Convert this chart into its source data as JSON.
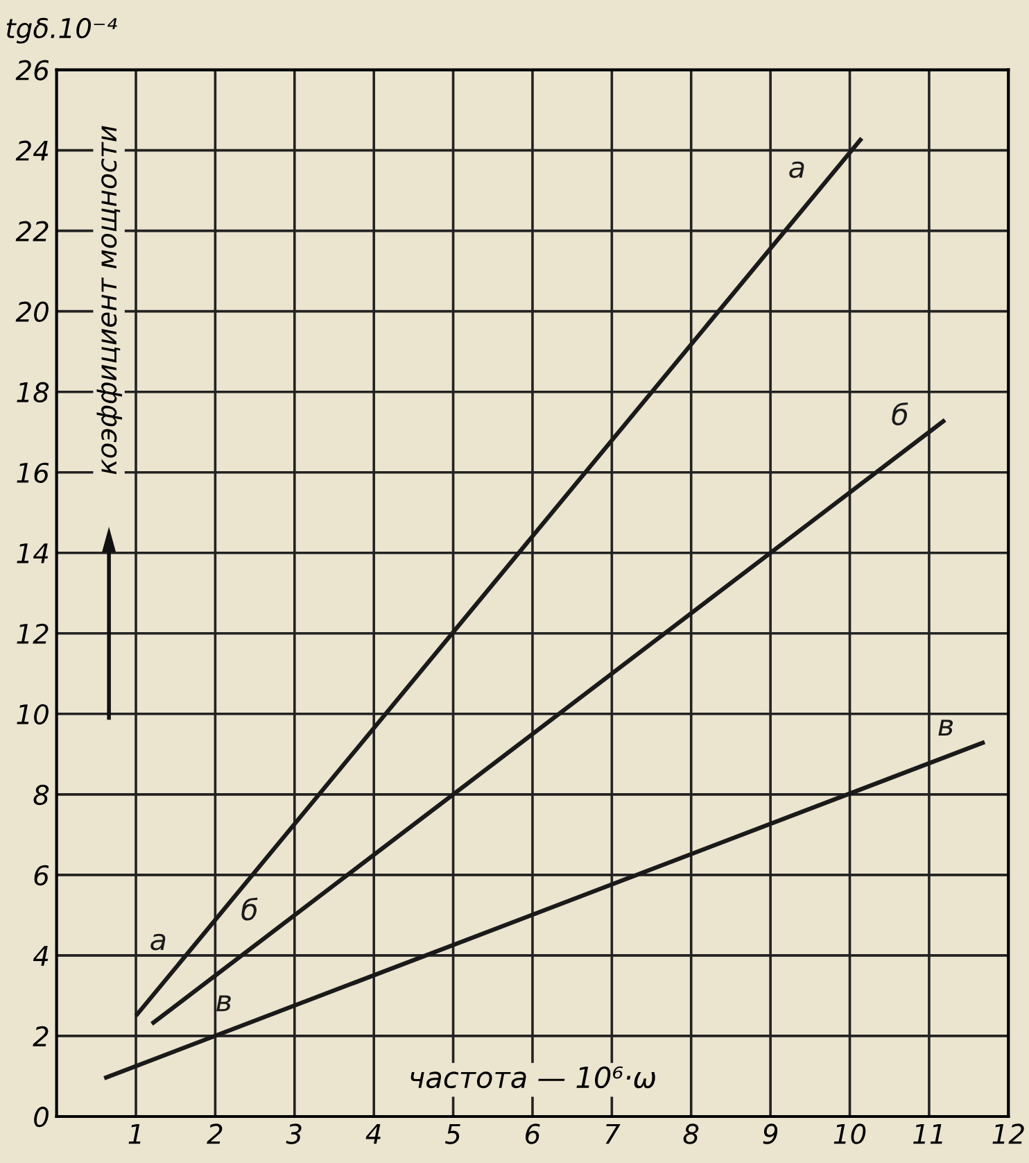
{
  "chart_data": {
    "type": "line",
    "title": "tgδ.10⁻⁴",
    "xlabel": "частота — 10⁶·ω",
    "ylabel": "коэффициент мощности",
    "series": [
      {
        "name": "а",
        "color": "#1a1a1a",
        "x": [
          1.0,
          10.15
        ],
        "values": [
          2.5,
          24.3
        ]
      },
      {
        "name": "б",
        "color": "#1a1a1a",
        "x": [
          1.2,
          11.2
        ],
        "values": [
          2.3,
          17.3
        ]
      },
      {
        "name": "в",
        "color": "#1a1a1a",
        "x": [
          0.6,
          11.7
        ],
        "values": [
          0.95,
          9.3
        ]
      }
    ],
    "xlim": [
      0,
      12
    ],
    "xticks": [
      1,
      2,
      3,
      4,
      5,
      6,
      7,
      8,
      9,
      10,
      11,
      12
    ],
    "ylim": [
      0,
      26
    ],
    "yticks": [
      0,
      2,
      4,
      6,
      8,
      10,
      12,
      14,
      16,
      18,
      20,
      22,
      24,
      26
    ],
    "grid": true,
    "line_style": "solid",
    "marker": "none"
  }
}
